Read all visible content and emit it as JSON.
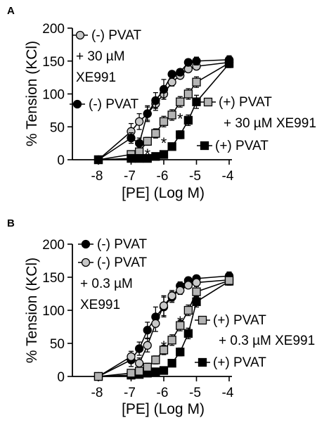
{
  "figure": {
    "panels": [
      {
        "letter": "A"
      },
      {
        "letter": "B"
      }
    ]
  },
  "chart_data": [
    {
      "panel": "A",
      "type": "line",
      "xlabel": "[PE] (Log M)",
      "ylabel": "% Tension (KCl)",
      "x_ticks": [
        -8,
        -7,
        -6,
        -5,
        -4
      ],
      "x_tick_labels": [
        "-8",
        "-7",
        "-6",
        "-5",
        "-4"
      ],
      "y_ticks": [
        0,
        50,
        100,
        150,
        200
      ],
      "y_tick_labels": [
        "0",
        "50",
        "100",
        "150",
        "200"
      ],
      "xlim": [
        -8.3,
        -3.8
      ],
      "ylim": [
        0,
        200
      ],
      "grid": false,
      "x": [
        -8,
        -7,
        -6.75,
        -6.5,
        -6.25,
        -6,
        -5.75,
        -5.5,
        -5.25,
        -5,
        -4
      ],
      "series": [
        {
          "name": "(-) PVAT + 30 µM XE991",
          "marker": "circle",
          "fill": "#c8c8c8",
          "values": [
            0,
            43,
            58,
            70,
            85,
            100,
            118,
            128,
            138,
            142,
            148
          ],
          "errors": [
            0,
            12,
            12,
            12,
            10,
            8,
            6,
            5,
            5,
            5,
            5
          ]
        },
        {
          "name": "(-) PVAT",
          "marker": "circle",
          "fill": "#000000",
          "values": [
            0,
            33,
            25,
            70,
            90,
            107,
            130,
            133,
            148,
            150,
            152
          ],
          "errors": [
            0,
            8,
            8,
            10,
            12,
            15,
            5,
            5,
            5,
            6,
            6
          ]
        },
        {
          "name": "(+) PVAT + 30 µM XE991",
          "marker": "square",
          "fill": "#b4b4b4",
          "values": [
            0,
            8,
            12,
            28,
            40,
            58,
            68,
            88,
            100,
            118,
            147
          ],
          "errors": [
            0,
            5,
            6,
            6,
            7,
            8,
            8,
            8,
            8,
            8,
            5
          ]
        },
        {
          "name": "(+) PVAT",
          "marker": "square",
          "fill": "#000000",
          "values": [
            0,
            2,
            2,
            2,
            5,
            8,
            20,
            38,
            60,
            88,
            146
          ],
          "errors": [
            0,
            3,
            3,
            3,
            3,
            4,
            5,
            6,
            8,
            10,
            6
          ]
        }
      ],
      "annotations": [
        {
          "text": "*",
          "x": -6.5,
          "y": 13
        },
        {
          "text": "*",
          "x": -6.0,
          "y": 30
        },
        {
          "text": "*",
          "x": -5.5,
          "y": 67
        }
      ],
      "legend": [
        {
          "lines": [
            "(-) PVAT",
            "+ 30 µM",
            "XE991"
          ],
          "placement": "top-left"
        },
        {
          "lines": [
            "(-) PVAT"
          ],
          "placement": "middle-left"
        },
        {
          "lines": [
            "(+) PVAT",
            "+ 30 µM XE991"
          ],
          "placement": "middle-right"
        },
        {
          "lines": [
            "(+) PVAT"
          ],
          "placement": "lower-right"
        }
      ]
    },
    {
      "panel": "B",
      "type": "line",
      "xlabel": "[PE] (Log M)",
      "ylabel": "% Tension (KCl)",
      "x_ticks": [
        -8,
        -7,
        -6,
        -5,
        -4
      ],
      "x_tick_labels": [
        "-8",
        "-7",
        "-6",
        "-5",
        "-4"
      ],
      "y_ticks": [
        0,
        50,
        100,
        150,
        200
      ],
      "y_tick_labels": [
        "0",
        "50",
        "100",
        "150",
        "200"
      ],
      "xlim": [
        -8.3,
        -3.8
      ],
      "ylim": [
        0,
        200
      ],
      "grid": false,
      "x": [
        -8,
        -7,
        -6.75,
        -6.5,
        -6.25,
        -6,
        -5.75,
        -5.5,
        -5.25,
        -5,
        -4
      ],
      "series": [
        {
          "name": "(-) PVAT",
          "marker": "circle",
          "fill": "#000000",
          "values": [
            0,
            25,
            42,
            70,
            90,
            105,
            120,
            137,
            145,
            148,
            152
          ],
          "errors": [
            0,
            10,
            10,
            12,
            15,
            15,
            8,
            6,
            5,
            5,
            6
          ]
        },
        {
          "name": "(-) PVAT + 0.3 µM XE991",
          "marker": "circle",
          "fill": "#c8c8c8",
          "values": [
            0,
            30,
            20,
            47,
            80,
            107,
            122,
            130,
            138,
            142,
            146
          ],
          "errors": [
            0,
            8,
            8,
            10,
            12,
            15,
            8,
            6,
            5,
            5,
            5
          ]
        },
        {
          "name": "(+) PVAT",
          "marker": "square",
          "fill": "#000000",
          "values": [
            0,
            2,
            3,
            5,
            7,
            9,
            20,
            37,
            65,
            113,
            144
          ],
          "errors": [
            0,
            3,
            3,
            3,
            3,
            4,
            5,
            6,
            8,
            8,
            6
          ]
        },
        {
          "name": "(+) PVAT + 0.3 µM XE991",
          "marker": "square",
          "fill": "#b4b4b4",
          "values": [
            0,
            5,
            8,
            14,
            25,
            40,
            55,
            77,
            100,
            128,
            145
          ],
          "errors": [
            0,
            4,
            5,
            6,
            6,
            7,
            8,
            8,
            8,
            8,
            5
          ]
        }
      ],
      "annotations": [
        {
          "text": "*",
          "x": -6.0,
          "y": 50
        },
        {
          "text": "*",
          "x": -5.5,
          "y": 87
        }
      ],
      "legend": [
        {
          "lines": [
            "(-) PVAT"
          ],
          "placement": "top-left"
        },
        {
          "lines": [
            "(-) PVAT",
            "+ 0.3 µM",
            "XE991"
          ],
          "placement": "top-left"
        },
        {
          "lines": [
            "(+) PVAT",
            "+  0.3 µM XE991"
          ],
          "placement": "middle-right"
        },
        {
          "lines": [
            "(+) PVAT"
          ],
          "placement": "lower-right"
        }
      ]
    }
  ]
}
